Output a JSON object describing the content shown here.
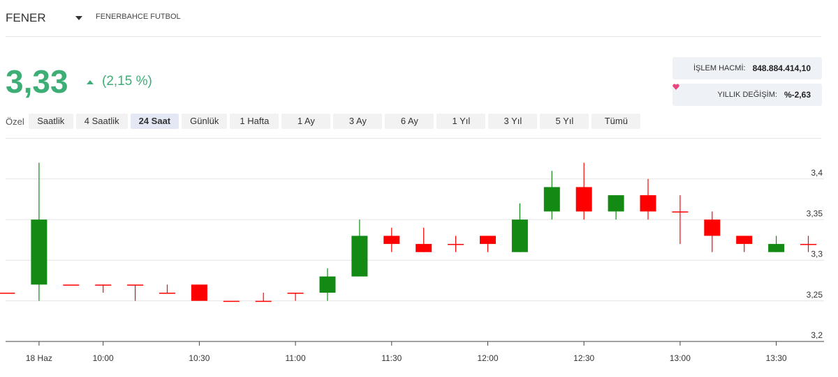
{
  "header": {
    "symbol": "FENER",
    "name": "FENERBAHCE FUTBOL"
  },
  "price": {
    "value": "3,33",
    "change": "(2,15 %)"
  },
  "stats": [
    {
      "label": "İŞLEM HACMİ:",
      "value": "848.884.414,10"
    },
    {
      "label": "YILLIK DEĞİŞİM:",
      "value": "%-2,63"
    }
  ],
  "periods": {
    "label": "Özel",
    "items": [
      "Saatlik",
      "4 Saatlik",
      "24 Saat",
      "Günlük",
      "1 Hafta",
      "1 Ay",
      "3 Ay",
      "6 Ay",
      "1 Yıl",
      "3 Yıl",
      "5 Yıl",
      "Tümü"
    ],
    "active": "24 Saat"
  },
  "chart_data": {
    "type": "candlestick",
    "x": [
      null,
      "18 Haz",
      null,
      "10:00",
      null,
      null,
      "10:30",
      null,
      null,
      "11:00",
      null,
      null,
      "11:30",
      null,
      null,
      "12:00",
      null,
      null,
      "12:30",
      null,
      null,
      "13:00",
      null,
      null,
      "13:30",
      null
    ],
    "open": [
      3.26,
      3.27,
      3.27,
      3.27,
      3.27,
      3.26,
      3.27,
      3.25,
      3.25,
      3.26,
      3.26,
      3.28,
      3.33,
      3.32,
      3.32,
      3.33,
      3.31,
      3.36,
      3.39,
      3.36,
      3.38,
      3.36,
      3.35,
      3.33,
      3.31,
      3.32
    ],
    "high": [
      3.26,
      3.42,
      3.27,
      3.27,
      3.27,
      3.27,
      3.27,
      3.25,
      3.26,
      3.26,
      3.29,
      3.35,
      3.34,
      3.34,
      3.33,
      3.33,
      3.37,
      3.41,
      3.42,
      3.38,
      3.4,
      3.38,
      3.36,
      3.33,
      3.33,
      3.33
    ],
    "low": [
      3.26,
      3.25,
      3.27,
      3.26,
      3.25,
      3.26,
      3.25,
      3.25,
      3.25,
      3.25,
      3.25,
      3.28,
      3.31,
      3.31,
      3.31,
      3.31,
      3.31,
      3.35,
      3.35,
      3.35,
      3.35,
      3.32,
      3.31,
      3.31,
      3.31,
      3.31
    ],
    "close": [
      3.26,
      3.35,
      3.27,
      3.27,
      3.27,
      3.26,
      3.25,
      3.25,
      3.25,
      3.26,
      3.28,
      3.33,
      3.32,
      3.31,
      3.32,
      3.32,
      3.35,
      3.39,
      3.36,
      3.38,
      3.36,
      3.36,
      3.33,
      3.32,
      3.32,
      3.32
    ],
    "up_color": "#138a13",
    "down_color": "#ff0000",
    "ylim": [
      3.2,
      3.45
    ],
    "yticks": [
      {
        "value": 3.2,
        "label": "3,2"
      },
      {
        "value": 3.25,
        "label": "3,25"
      },
      {
        "value": 3.3,
        "label": "3,3"
      },
      {
        "value": 3.35,
        "label": "3,35"
      },
      {
        "value": 3.4,
        "label": "3,4"
      }
    ],
    "grid": true
  }
}
